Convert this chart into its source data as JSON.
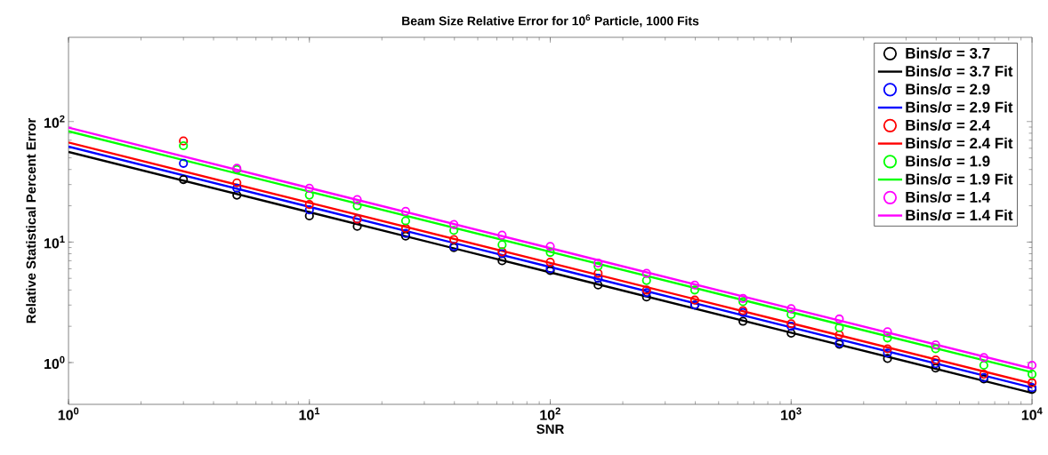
{
  "chart_data": {
    "type": "scatter",
    "title": "Beam Size Relative Error for 10$^{6}$ Particle, 1000 Fits",
    "xlabel": "SNR",
    "ylabel": "Relative Statistical Percent Error",
    "log": "xy",
    "marker": "circle",
    "legend": "top right",
    "xlim": [
      1,
      10000
    ],
    "ylim": [
      0.45,
      500
    ],
    "xticks": [
      {
        "value": 1,
        "label": "10$^{0}$"
      },
      {
        "value": 10,
        "label": "10$^{1}$"
      },
      {
        "value": 100,
        "label": "10$^{2}$"
      },
      {
        "value": 1000,
        "label": "10$^{3}$"
      },
      {
        "value": 10000,
        "label": "10$^{4}$"
      }
    ],
    "yticks": [
      {
        "value": 1,
        "label": "10$^{0}$"
      },
      {
        "value": 10,
        "label": "10$^{1}$"
      },
      {
        "value": 100,
        "label": "10$^{2}$"
      }
    ],
    "x": [
      3,
      5,
      10,
      15.8,
      25.1,
      39.8,
      63.1,
      100,
      158,
      251,
      398,
      631,
      1000,
      1585,
      2512,
      3981,
      6310,
      10000
    ],
    "series": [
      {
        "name": "Bins/σ = 3.7",
        "color": "#000000",
        "values": [
          33,
          24.5,
          16.5,
          13.5,
          11.2,
          9.0,
          7.0,
          5.8,
          4.4,
          3.5,
          3.0,
          2.2,
          1.75,
          1.42,
          1.08,
          0.9,
          0.73,
          0.6
        ]
      },
      {
        "name": "Bins/σ = 3.7 Fit",
        "type": "line",
        "marker": "none",
        "color": "#000000",
        "x": [
          1,
          10,
          100,
          1000,
          10000
        ],
        "values": [
          56,
          17.7,
          5.6,
          1.77,
          0.56
        ]
      },
      {
        "name": "Bins/σ = 2.9",
        "color": "#0000ff",
        "values": [
          45,
          28,
          18.5,
          15.5,
          11.8,
          9.2,
          8.0,
          6.0,
          5.0,
          3.8,
          3.0,
          2.6,
          2.0,
          1.45,
          1.2,
          0.98,
          0.75,
          0.62
        ]
      },
      {
        "name": "Bins/σ = 2.9 Fit",
        "type": "line",
        "marker": "none",
        "color": "#0000ff",
        "x": [
          1,
          10,
          100,
          1000,
          10000
        ],
        "values": [
          62,
          19.6,
          6.2,
          1.96,
          0.62
        ]
      },
      {
        "name": "Bins/σ = 2.4",
        "color": "#ff0000",
        "values": [
          69,
          31,
          20.5,
          15.5,
          13.0,
          10.5,
          8.3,
          6.8,
          5.5,
          4.0,
          3.3,
          2.7,
          2.1,
          1.7,
          1.3,
          1.05,
          0.8,
          0.68
        ]
      },
      {
        "name": "Bins/σ = 2.4 Fit",
        "type": "line",
        "marker": "none",
        "color": "#ff0000",
        "x": [
          1,
          10,
          100,
          1000,
          10000
        ],
        "values": [
          67,
          21.2,
          6.7,
          2.12,
          0.67
        ]
      },
      {
        "name": "Bins/σ = 1.9",
        "color": "#00ff00",
        "values": [
          63,
          40,
          24.5,
          20.0,
          15.0,
          12.5,
          9.5,
          8.2,
          6.3,
          4.8,
          4.0,
          3.2,
          2.5,
          1.95,
          1.6,
          1.3,
          0.95,
          0.8
        ]
      },
      {
        "name": "Bins/σ = 1.9 Fit",
        "type": "line",
        "marker": "none",
        "color": "#00ff00",
        "x": [
          1,
          10,
          100,
          1000,
          10000
        ],
        "values": [
          83,
          26.2,
          8.3,
          2.62,
          0.83
        ]
      },
      {
        "name": "Bins/σ = 1.4",
        "color": "#ff00ff",
        "values": [
          null,
          41,
          28,
          22.5,
          18,
          14,
          11.4,
          9.2,
          6.7,
          5.5,
          4.4,
          3.4,
          2.8,
          2.3,
          1.8,
          1.4,
          1.1,
          0.95
        ]
      },
      {
        "name": "Bins/σ = 1.4 Fit",
        "type": "line",
        "marker": "none",
        "color": "#ff00ff",
        "x": [
          1,
          10,
          100,
          1000,
          10000
        ],
        "values": [
          89,
          28.1,
          8.9,
          2.81,
          0.89
        ]
      }
    ]
  }
}
